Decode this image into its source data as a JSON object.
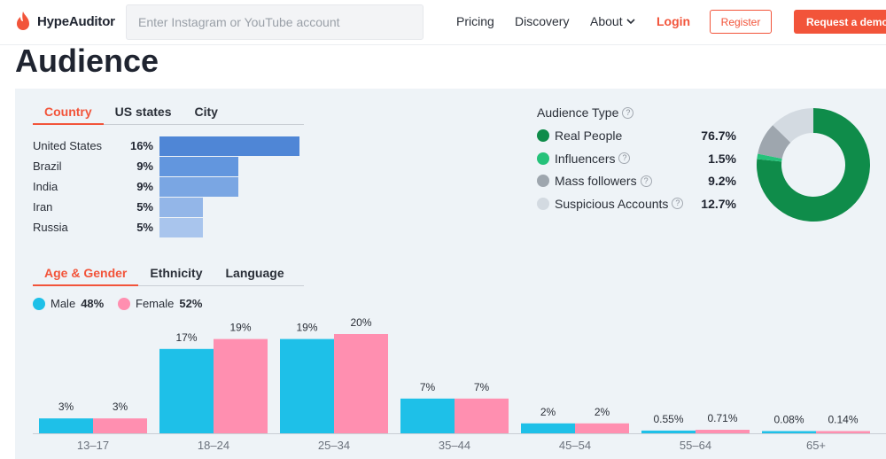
{
  "header": {
    "brand": "HypeAuditor",
    "search_placeholder": "Enter Instagram or YouTube account",
    "nav": {
      "pricing": "Pricing",
      "discovery": "Discovery",
      "about": "About",
      "login": "Login"
    },
    "register_label": "Register",
    "demo_label": "Request a demo"
  },
  "page_title": "Audience",
  "geo_tabs": [
    "Country",
    "US states",
    "City"
  ],
  "countries": [
    {
      "name": "United States",
      "pct": "16%",
      "value": 16,
      "color": "#4f86d6"
    },
    {
      "name": "Brazil",
      "pct": "9%",
      "value": 9,
      "color": "#6296de"
    },
    {
      "name": "India",
      "pct": "9%",
      "value": 9,
      "color": "#7aa6e3"
    },
    {
      "name": "Iran",
      "pct": "5%",
      "value": 5,
      "color": "#93b6e8"
    },
    {
      "name": "Russia",
      "pct": "5%",
      "value": 5,
      "color": "#a9c5ed"
    }
  ],
  "audience_type": {
    "title": "Audience Type",
    "items": [
      {
        "label": "Real People",
        "value": "76.7%",
        "pct": 76.7,
        "color": "#0f8c4a",
        "help": false
      },
      {
        "label": "Influencers",
        "value": "1.5%",
        "pct": 1.5,
        "color": "#25c27a",
        "help": true
      },
      {
        "label": "Mass followers",
        "value": "9.2%",
        "pct": 9.2,
        "color": "#9ea6ae",
        "help": true
      },
      {
        "label": "Suspicious Accounts",
        "value": "12.7%",
        "pct": 12.7,
        "color": "#d3dae1",
        "help": true
      }
    ]
  },
  "demo_tabs": [
    "Age & Gender",
    "Ethnicity",
    "Language"
  ],
  "gender": {
    "male_label": "Male",
    "male_pct": "48%",
    "male_color": "#1ec0e8",
    "female_label": "Female",
    "female_pct": "52%",
    "female_color": "#ff8fb0"
  },
  "age_groups": [
    {
      "label": "13–17",
      "male": 3,
      "male_text": "3%",
      "female": 3,
      "female_text": "3%"
    },
    {
      "label": "18–24",
      "male": 17,
      "male_text": "17%",
      "female": 19,
      "female_text": "19%"
    },
    {
      "label": "25–34",
      "male": 19,
      "male_text": "19%",
      "female": 20,
      "female_text": "20%"
    },
    {
      "label": "35–44",
      "male": 7,
      "male_text": "7%",
      "female": 7,
      "female_text": "7%"
    },
    {
      "label": "45–54",
      "male": 2,
      "male_text": "2%",
      "female": 2,
      "female_text": "2%"
    },
    {
      "label": "55–64",
      "male": 0.55,
      "male_text": "0.55%",
      "female": 0.71,
      "female_text": "0.71%"
    },
    {
      "label": "65+",
      "male": 0.08,
      "male_text": "0.08%",
      "female": 0.14,
      "female_text": "0.14%"
    }
  ]
}
